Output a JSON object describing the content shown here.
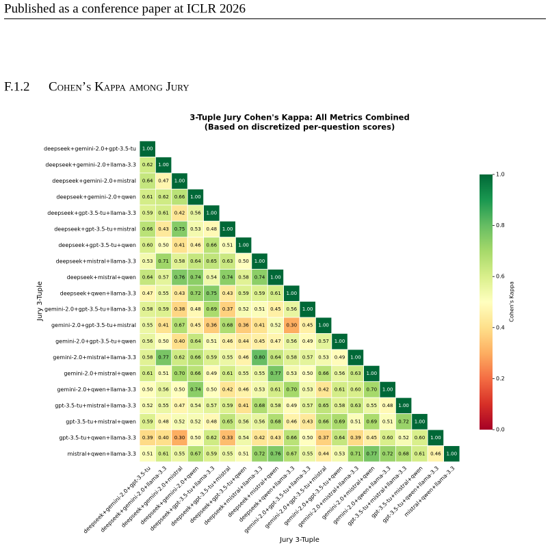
{
  "header": "Published as a conference paper at ICLR 2026",
  "section": {
    "number": "F.1.2",
    "title": "Cohen’s Kappa among Jury"
  },
  "chart_data": {
    "type": "heatmap",
    "title": "3-Tuple Jury Cohen's Kappa: All Metrics Combined",
    "subtitle": "(Based on discretized per-question scores)",
    "x_label": "Jury 3-Tuple",
    "y_label": "Jury 3-Tuple",
    "colorbar_label": "Cohen's Kappa",
    "colormap": "RdYlGn",
    "zlim": [
      0,
      1
    ],
    "zticks": [
      {
        "value": 0,
        "label": "0.0"
      },
      {
        "value": 0.2,
        "label": "0.2"
      },
      {
        "value": 0.4,
        "label": "0.4"
      },
      {
        "value": 0.6,
        "label": "0.6"
      },
      {
        "value": 0.8,
        "label": "0.8"
      },
      {
        "value": 1,
        "label": "1.0"
      }
    ],
    "categories": [
      "deepseek+gemini-2.0+gpt-3.5-tu",
      "deepseek+gemini-2.0+llama-3.3",
      "deepseek+gemini-2.0+mistral",
      "deepseek+gemini-2.0+qwen",
      "deepseek+gpt-3.5-tu+llama-3.3",
      "deepseek+gpt-3.5-tu+mistral",
      "deepseek+gpt-3.5-tu+qwen",
      "deepseek+mistral+llama-3.3",
      "deepseek+mistral+qwen",
      "deepseek+qwen+llama-3.3",
      "gemini-2.0+gpt-3.5-tu+llama-3.3",
      "gemini-2.0+gpt-3.5-tu+mistral",
      "gemini-2.0+gpt-3.5-tu+qwen",
      "gemini-2.0+mistral+llama-3.3",
      "gemini-2.0+mistral+qwen",
      "gemini-2.0+qwen+llama-3.3",
      "gpt-3.5-tu+mistral+llama-3.3",
      "gpt-3.5-tu+mistral+qwen",
      "gpt-3.5-tu+qwen+llama-3.3",
      "mistral+qwen+llama-3.3"
    ],
    "values": [
      [
        1.0
      ],
      [
        0.62,
        1.0
      ],
      [
        0.64,
        0.47,
        1.0
      ],
      [
        0.61,
        0.62,
        0.66,
        1.0
      ],
      [
        0.59,
        0.61,
        0.42,
        0.56,
        1.0
      ],
      [
        0.66,
        0.43,
        0.75,
        0.53,
        0.48,
        1.0
      ],
      [
        0.6,
        0.5,
        0.41,
        0.46,
        0.66,
        0.51,
        1.0
      ],
      [
        0.53,
        0.71,
        0.58,
        0.64,
        0.65,
        0.63,
        0.5,
        1.0
      ],
      [
        0.64,
        0.57,
        0.76,
        0.74,
        0.54,
        0.74,
        0.58,
        0.74,
        1.0
      ],
      [
        0.47,
        0.55,
        0.43,
        0.72,
        0.75,
        0.43,
        0.59,
        0.59,
        0.61,
        1.0
      ],
      [
        0.58,
        0.59,
        0.38,
        0.48,
        0.69,
        0.37,
        0.52,
        0.51,
        0.45,
        0.56,
        1.0
      ],
      [
        0.55,
        0.41,
        0.67,
        0.45,
        0.36,
        0.68,
        0.36,
        0.41,
        0.52,
        0.3,
        0.45,
        1.0
      ],
      [
        0.56,
        0.5,
        0.4,
        0.64,
        0.51,
        0.46,
        0.44,
        0.45,
        0.47,
        0.56,
        0.49,
        0.57,
        1.0
      ],
      [
        0.58,
        0.77,
        0.62,
        0.66,
        0.59,
        0.55,
        0.46,
        0.8,
        0.64,
        0.58,
        0.57,
        0.53,
        0.49,
        1.0
      ],
      [
        0.61,
        0.51,
        0.7,
        0.66,
        0.49,
        0.61,
        0.55,
        0.55,
        0.77,
        0.53,
        0.5,
        0.66,
        0.56,
        0.63,
        1.0
      ],
      [
        0.5,
        0.56,
        0.5,
        0.74,
        0.5,
        0.42,
        0.46,
        0.53,
        0.61,
        0.7,
        0.53,
        0.42,
        0.61,
        0.6,
        0.7,
        1.0
      ],
      [
        0.52,
        0.55,
        0.47,
        0.54,
        0.57,
        0.59,
        0.41,
        0.68,
        0.58,
        0.49,
        0.57,
        0.65,
        0.58,
        0.63,
        0.55,
        0.48,
        1.0
      ],
      [
        0.59,
        0.48,
        0.52,
        0.52,
        0.48,
        0.65,
        0.56,
        0.56,
        0.68,
        0.46,
        0.43,
        0.66,
        0.69,
        0.51,
        0.69,
        0.51,
        0.72,
        1.0
      ],
      [
        0.39,
        0.4,
        0.3,
        0.5,
        0.62,
        0.33,
        0.54,
        0.42,
        0.43,
        0.66,
        0.5,
        0.37,
        0.64,
        0.39,
        0.45,
        0.6,
        0.52,
        0.6,
        1.0
      ],
      [
        0.51,
        0.61,
        0.55,
        0.67,
        0.59,
        0.55,
        0.51,
        0.72,
        0.76,
        0.67,
        0.55,
        0.44,
        0.53,
        0.71,
        0.77,
        0.72,
        0.68,
        0.61,
        0.46,
        1.0
      ]
    ],
    "value_labels": [
      [
        "1.00"
      ],
      [
        "0.62",
        "1.00"
      ],
      [
        "0.64",
        "0.47",
        "1.00"
      ],
      [
        "0.61",
        "0.62",
        "0.66",
        "1.00"
      ],
      [
        "0.59",
        "0.61",
        "0.42",
        "0.56",
        "1.00"
      ],
      [
        "0.66",
        "0.43",
        "0.75",
        "0.53",
        "0.48",
        "1.00"
      ],
      [
        "0.60",
        "0.50",
        "0.41",
        "0.46",
        "0.66",
        "0.51",
        "1.00"
      ],
      [
        "0.53",
        "0.71",
        "0.58",
        "0.64",
        "0.65",
        "0.63",
        "0.50",
        "1.00"
      ],
      [
        "0.64",
        "0.57",
        "0.76",
        "0.74",
        "0.54",
        "0.74",
        "0.58",
        "0.74",
        "1.00"
      ],
      [
        "0.47",
        "0.55",
        "0.43",
        "0.72",
        "0.75",
        "0.43",
        "0.59",
        "0.59",
        "0.61",
        "1.00"
      ],
      [
        "0.58",
        "0.59",
        "0.38",
        "0.48",
        "0.69",
        "0.37",
        "0.52",
        "0.51",
        "0.45",
        "0.56",
        "1.00"
      ],
      [
        "0.55",
        "0.41",
        "0.67",
        "0.45",
        "0.36",
        "0.68",
        "0.36",
        "0.41",
        "0.52",
        "0.30",
        "0.45",
        "1.00"
      ],
      [
        "0.56",
        "0.50",
        "0.40",
        "0.64",
        "0.51",
        "0.46",
        "0.44",
        "0.45",
        "0.47",
        "0.56",
        "0.49",
        "0.57",
        "1.00"
      ],
      [
        "0.58",
        "0.77",
        "0.62",
        "0.66",
        "0.59",
        "0.55",
        "0.46",
        "0.80",
        "0.64",
        "0.58",
        "0.57",
        "0.53",
        "0.49",
        "1.00"
      ],
      [
        "0.61",
        "0.51",
        "0.70",
        "0.66",
        "0.49",
        "0.61",
        "0.55",
        "0.55",
        "0.77",
        "0.53",
        "0.50",
        "0.66",
        "0.56",
        "0.63",
        "1.00"
      ],
      [
        "0.50",
        "0.56",
        "0.50",
        "0.74",
        "0.50",
        "0.42",
        "0.46",
        "0.53",
        "0.61",
        "0.70",
        "0.53",
        "0.42",
        "0.61",
        "0.60",
        "0.70",
        "1.00"
      ],
      [
        "0.52",
        "0.55",
        "0.47",
        "0.54",
        "0.57",
        "0.59",
        "0.41",
        "0.68",
        "0.58",
        "0.49",
        "0.57",
        "0.65",
        "0.58",
        "0.63",
        "0.55",
        "0.48",
        "1.00"
      ],
      [
        "0.59",
        "0.48",
        "0.52",
        "0.52",
        "0.48",
        "0.65",
        "0.56",
        "0.56",
        "0.68",
        "0.46",
        "0.43",
        "0.66",
        "0.69",
        "0.51",
        "0.69",
        "0.51",
        "0.72",
        "1.00"
      ],
      [
        "0.39",
        "0.40",
        "0.30",
        "0.50",
        "0.62",
        "0.33",
        "0.54",
        "0.42",
        "0.43",
        "0.66",
        "0.50",
        "0.37",
        "0.64",
        "0.39",
        "0.45",
        "0.60",
        "0.52",
        "0.60",
        "1.00"
      ],
      [
        "0.51",
        "0.61",
        "0.55",
        "0.67",
        "0.59",
        "0.55",
        "0.51",
        "0.72",
        "0.76",
        "0.67",
        "0.55",
        "0.44",
        "0.53",
        "0.71",
        "0.77",
        "0.72",
        "0.68",
        "0.61",
        "0.46",
        "1.00"
      ]
    ]
  }
}
